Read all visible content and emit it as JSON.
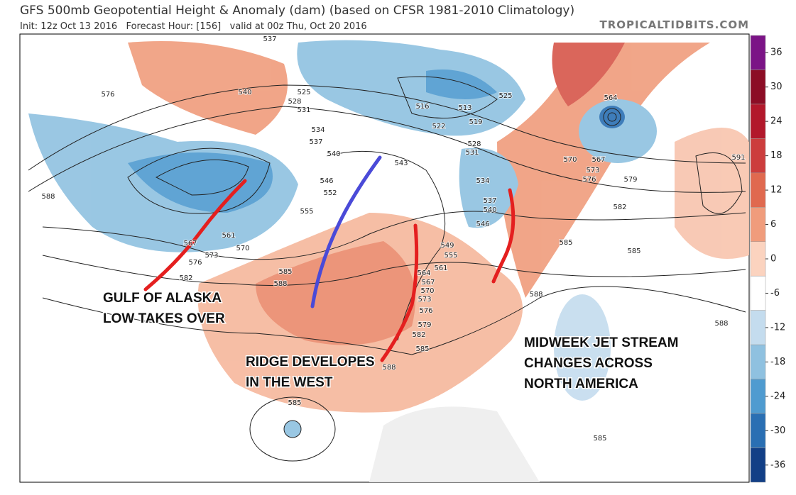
{
  "header": {
    "title": "GFS 500mb Geopotential Height & Anomaly (dam) (based on CFSR 1981-2010 Climatology)",
    "subtitle": "Init: 12z Oct 13 2016   Forecast Hour: [156]   valid at 00z Thu, Oct 20 2016",
    "source": "TROPICALTIDBITS.COM"
  },
  "colorbar": {
    "ticks": [
      36,
      30,
      24,
      18,
      12,
      6,
      0,
      -6,
      -12,
      -18,
      -24,
      -30,
      -36
    ],
    "colors": [
      "#7b1486",
      "#8c0d25",
      "#b2182b",
      "#cc3d3d",
      "#e0694f",
      "#f09c7c",
      "#fbd3bf",
      "#ffffff",
      "#c4dcee",
      "#8fc1e0",
      "#4f9bd0",
      "#2a6fb3",
      "#123f86"
    ]
  },
  "contour_labels": [
    "537",
    "540",
    "525",
    "528",
    "531",
    "576",
    "588",
    "534",
    "537",
    "540",
    "546",
    "552",
    "555",
    "567",
    "561",
    "573",
    "576",
    "570",
    "582",
    "585",
    "588",
    "516",
    "513",
    "519",
    "522",
    "528",
    "531",
    "525",
    "564",
    "570",
    "567",
    "573",
    "576",
    "579",
    "582",
    "591",
    "585",
    "585",
    "549",
    "555",
    "561",
    "564",
    "567",
    "570",
    "573",
    "576",
    "579",
    "582",
    "585",
    "588",
    "588",
    "588",
    "534",
    "537",
    "540",
    "546",
    "585",
    "585",
    "543"
  ],
  "annotations": [
    "GULF OF ALASKA",
    "LOW TAKES OVER",
    "RIDGE DEVELOPES",
    "IN THE WEST",
    "MIDWEEK JET STREAM",
    "CHANGES ACROSS",
    "NORTH AMERICA"
  ]
}
